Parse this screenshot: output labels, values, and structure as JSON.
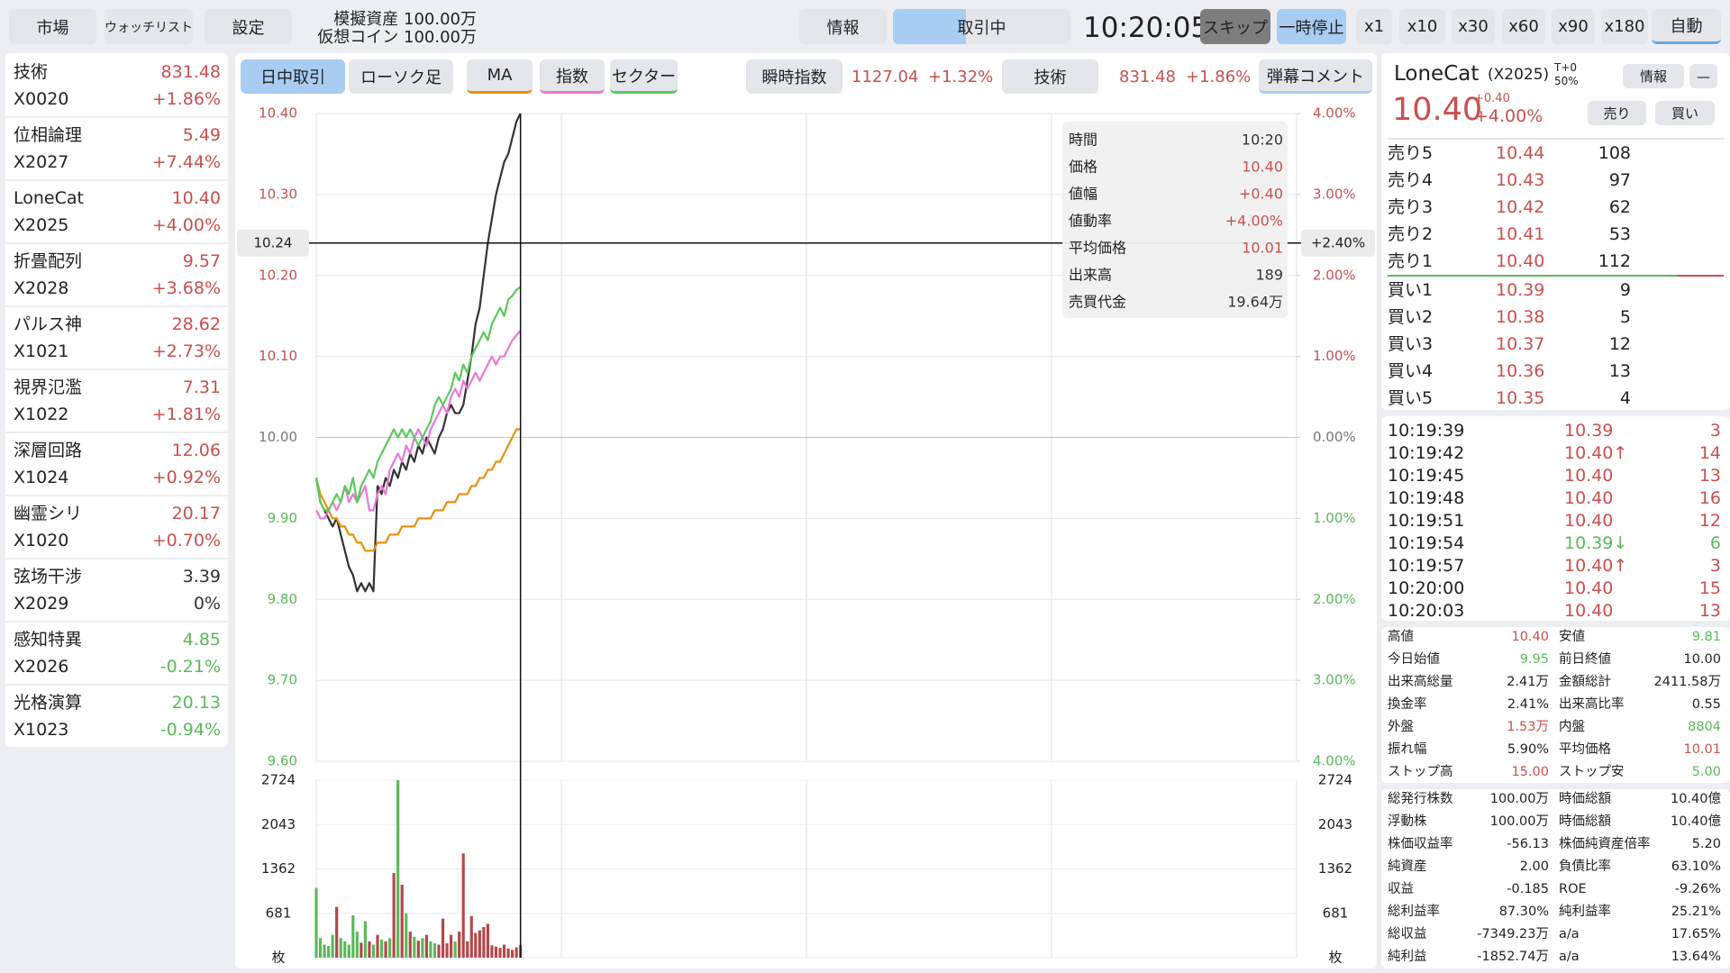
{
  "header": {
    "buttons": [
      "市場",
      "ウォッチリスト",
      "設定"
    ],
    "assets": [
      "模擬資産 100.00万",
      "仮想コイン 100.00万"
    ],
    "info": "情報",
    "status": "取引中",
    "time": "10:20:05",
    "skip": "スキップ",
    "pause": "一時停止",
    "speeds": [
      "x1",
      "x10",
      "x30",
      "x60",
      "x90",
      "x180"
    ],
    "auto": "自動"
  },
  "watchlist": [
    {
      "name": "技術",
      "code": "X0020",
      "price": "831.48",
      "change": "+1.86%",
      "color": "#c8504f"
    },
    {
      "name": "位相論理",
      "code": "X2027",
      "price": "5.49",
      "change": "+7.44%",
      "color": "#c8504f"
    },
    {
      "name": "LoneCat",
      "code": "X2025",
      "price": "10.40",
      "change": "+4.00%",
      "color": "#c8504f"
    },
    {
      "name": "折畳配列",
      "code": "X2028",
      "price": "9.57",
      "change": "+3.68%",
      "color": "#c8504f"
    },
    {
      "name": "パルス神",
      "code": "X1021",
      "price": "28.62",
      "change": "+2.73%",
      "color": "#c8504f"
    },
    {
      "name": "視界氾濫",
      "code": "X1022",
      "price": "7.31",
      "change": "+1.81%",
      "color": "#c8504f"
    },
    {
      "name": "深層回路",
      "code": "X1024",
      "price": "12.06",
      "change": "+0.92%",
      "color": "#c8504f"
    },
    {
      "name": "幽霊シリ",
      "code": "X1020",
      "price": "20.17",
      "change": "+0.70%",
      "color": "#c8504f"
    },
    {
      "name": "弦场干涉",
      "code": "X2029",
      "price": "3.39",
      "change": "0%",
      "color": "#333333"
    },
    {
      "name": "感知特異",
      "code": "X2026",
      "price": "4.85",
      "change": "-0.21%",
      "color": "#5cb85c"
    },
    {
      "name": "光格演算",
      "code": "X1023",
      "price": "20.13",
      "change": "-0.94%",
      "color": "#5cb85c"
    }
  ],
  "tabs": {
    "modes": [
      "日中取引",
      "ローソク足"
    ],
    "index": {
      "label": "瞬時指数",
      "value": "1127.04",
      "change": "+1.32%"
    },
    "sector": {
      "label": "技術",
      "value": "831.48",
      "change": "+1.86%"
    },
    "comments": "弾幕コメント"
  },
  "chart_data": [
    {
      "type": "line",
      "xlim": [
        0,
        240
      ],
      "xticks": [
        0,
        60,
        120,
        180,
        240
      ],
      "x": [
        0,
        1,
        2,
        3,
        4,
        5,
        6,
        7,
        8,
        9,
        10,
        11,
        12,
        13,
        14,
        15,
        16,
        17,
        18,
        19,
        20,
        21,
        22,
        23,
        24,
        25,
        26,
        27,
        28,
        29,
        30,
        31,
        32,
        33,
        34,
        35,
        36,
        37,
        38,
        39,
        40,
        41,
        42,
        43,
        44,
        45,
        46,
        47,
        48,
        49,
        50
      ],
      "ylim": [
        9.6,
        10.4
      ],
      "yticks": [
        {
          "value": 10.4,
          "label": "10.40"
        },
        {
          "value": 10.3,
          "label": "10.30"
        },
        {
          "value": 10.2,
          "label": "10.20"
        },
        {
          "value": 10.1,
          "label": "10.10"
        },
        {
          "value": 10.0,
          "label": "10.00"
        },
        {
          "value": 9.9,
          "label": "9.90"
        },
        {
          "value": 9.8,
          "label": "9.80"
        },
        {
          "value": 9.7,
          "label": "9.70"
        },
        {
          "value": 9.6,
          "label": "9.60"
        }
      ],
      "y2lim": [
        -4,
        4
      ],
      "y2ticks": [
        {
          "value": 4,
          "label": "4.00%"
        },
        {
          "value": 3,
          "label": "3.00%"
        },
        {
          "value": 2,
          "label": "2.00%"
        },
        {
          "value": 1,
          "label": "1.00%"
        },
        {
          "value": 0,
          "label": "0.00%"
        },
        {
          "value": -1,
          "label": "1.00%"
        },
        {
          "value": -2,
          "label": "2.00%"
        },
        {
          "value": -3,
          "label": "3.00%"
        },
        {
          "value": -4,
          "label": "4.00%"
        }
      ],
      "grid": true,
      "series": [
        {
          "color": "#333333",
          "values": [
            9.95,
            9.92,
            9.91,
            9.9,
            9.89,
            9.9,
            9.88,
            9.86,
            9.84,
            9.83,
            9.81,
            9.82,
            9.81,
            9.82,
            9.81,
            9.94,
            9.93,
            9.95,
            9.94,
            9.96,
            9.95,
            9.97,
            9.96,
            9.98,
            9.97,
            9.99,
            9.98,
            10.0,
            9.99,
            9.98,
            10.0,
            10.01,
            10.03,
            10.04,
            10.03,
            10.03,
            10.04,
            10.07,
            10.1,
            10.14,
            10.16,
            10.2,
            10.24,
            10.27,
            10.3,
            10.32,
            10.34,
            10.35,
            10.37,
            10.39,
            10.4
          ]
        },
        {
          "name": "MA",
          "color": "#e8900c",
          "values": [
            9.95,
            9.93,
            9.92,
            9.91,
            9.9,
            9.9,
            9.89,
            9.89,
            9.88,
            9.88,
            9.87,
            9.87,
            9.86,
            9.86,
            9.86,
            9.87,
            9.87,
            9.87,
            9.88,
            9.88,
            9.88,
            9.89,
            9.89,
            9.89,
            9.89,
            9.9,
            9.9,
            9.9,
            9.9,
            9.91,
            9.91,
            9.91,
            9.92,
            9.92,
            9.92,
            9.93,
            9.93,
            9.93,
            9.94,
            9.94,
            9.95,
            9.95,
            9.96,
            9.96,
            9.97,
            9.97,
            9.98,
            9.99,
            10.0,
            10.01,
            10.01
          ]
        },
        {
          "name": "指数",
          "color": "#e67ad8",
          "axis": "y2",
          "values": [
            -0.9,
            -1.0,
            -1.0,
            -0.9,
            -0.8,
            -0.9,
            -0.8,
            -0.6,
            -0.8,
            -0.7,
            -0.8,
            -0.7,
            -0.6,
            -0.9,
            -0.9,
            -0.7,
            -0.6,
            -0.7,
            -0.4,
            -0.3,
            -0.2,
            -0.3,
            -0.1,
            -0.2,
            0.0,
            0.1,
            0.0,
            -0.1,
            0.1,
            0.2,
            0.3,
            0.4,
            0.3,
            0.5,
            0.6,
            0.5,
            0.7,
            0.6,
            0.7,
            0.8,
            0.7,
            0.8,
            0.9,
            1.0,
            0.9,
            1.0,
            1.0,
            1.1,
            1.2,
            1.26,
            1.32
          ]
        },
        {
          "name": "セクター",
          "color": "#5cc85c",
          "axis": "y2",
          "values": [
            -0.5,
            -0.8,
            -0.9,
            -0.9,
            -0.8,
            -0.7,
            -0.8,
            -0.6,
            -0.7,
            -0.5,
            -0.8,
            -0.6,
            -0.5,
            -0.4,
            -0.5,
            -0.3,
            -0.2,
            -0.1,
            0.0,
            0.1,
            0.0,
            0.1,
            0.0,
            0.1,
            0.0,
            -0.1,
            0.0,
            0.1,
            0.2,
            0.4,
            0.5,
            0.4,
            0.5,
            0.6,
            0.8,
            0.7,
            0.9,
            0.8,
            1.0,
            1.1,
            1.2,
            1.3,
            1.2,
            1.4,
            1.5,
            1.6,
            1.5,
            1.7,
            1.75,
            1.82,
            1.86
          ]
        }
      ],
      "crosshair": {
        "x": 50,
        "y": 10.24,
        "y2": {
          "value": 2.4,
          "label": "+2.40%"
        }
      },
      "tooltip": [
        {
          "label": "時間",
          "value": "10:20",
          "color": "#333333"
        },
        {
          "label": "価格",
          "value": "10.40",
          "color": "#c8504f"
        },
        {
          "label": "値幅",
          "value": "+0.40",
          "color": "#c8504f"
        },
        {
          "label": "値動率",
          "value": "+4.00%",
          "color": "#c8504f"
        },
        {
          "label": "平均価格",
          "value": "10.01",
          "color": "#c8504f"
        },
        {
          "label": "出来高",
          "value": "189",
          "color": "#333333"
        },
        {
          "label": "売買代金",
          "value": "19.64万",
          "color": "#333333"
        }
      ]
    },
    {
      "type": "bar",
      "xlim": [
        0,
        240
      ],
      "xticks": [
        0,
        60,
        120,
        180,
        240
      ],
      "x": [
        0,
        1,
        2,
        3,
        4,
        5,
        6,
        7,
        8,
        9,
        10,
        11,
        12,
        13,
        14,
        15,
        16,
        17,
        18,
        19,
        20,
        21,
        22,
        23,
        24,
        25,
        26,
        27,
        28,
        29,
        30,
        31,
        32,
        33,
        34,
        35,
        36,
        37,
        38,
        39,
        40,
        41,
        42,
        43,
        44,
        45,
        46,
        47,
        48,
        49,
        50
      ],
      "values": [
        1070,
        300,
        200,
        180,
        350,
        780,
        300,
        250,
        200,
        650,
        400,
        230,
        560,
        250,
        200,
        350,
        280,
        250,
        300,
        1300,
        2724,
        1120,
        680,
        400,
        320,
        260,
        300,
        350,
        250,
        220,
        200,
        600,
        220,
        350,
        250,
        400,
        1600,
        250,
        640,
        380,
        420,
        470,
        520,
        190,
        170,
        150,
        200,
        140,
        120,
        160,
        189
      ],
      "ylim": [
        0,
        2724
      ],
      "yticks": [
        {
          "value": 0,
          "label": "枚"
        },
        681,
        1362,
        2043,
        2724
      ],
      "colors": {
        "up": "#b5474b",
        "down": "#5cb85c"
      }
    }
  ],
  "stock": {
    "name": "LoneCat",
    "code": "(X2025)",
    "t": "T+0",
    "ratio": "50%",
    "info": "情報",
    "minimize": "—",
    "price": "10.40",
    "change": "+0.40",
    "pct": "+4.00%",
    "sell": "売り",
    "buy": "買い"
  },
  "order_book": [
    {
      "label": "売り5",
      "price": "10.44",
      "volume": "108"
    },
    {
      "label": "売り4",
      "price": "10.43",
      "volume": "97"
    },
    {
      "label": "売り3",
      "price": "10.42",
      "volume": "62"
    },
    {
      "label": "売り2",
      "price": "10.41",
      "volume": "53"
    },
    {
      "label": "売り1",
      "price": "10.40",
      "volume": "112"
    },
    {
      "label": "買い1",
      "price": "10.39",
      "volume": "9"
    },
    {
      "label": "買い2",
      "price": "10.38",
      "volume": "5"
    },
    {
      "label": "買い3",
      "price": "10.37",
      "volume": "12"
    },
    {
      "label": "買い4",
      "price": "10.36",
      "volume": "13"
    },
    {
      "label": "買い5",
      "price": "10.35",
      "volume": "4"
    }
  ],
  "trades": [
    {
      "time": "10:19:39",
      "price": "10.39",
      "volume": "3",
      "color": "#c8504f"
    },
    {
      "time": "10:19:42",
      "price": "10.40↑",
      "volume": "14",
      "color": "#c8504f"
    },
    {
      "time": "10:19:45",
      "price": "10.40",
      "volume": "13",
      "color": "#c8504f"
    },
    {
      "time": "10:19:48",
      "price": "10.40",
      "volume": "16",
      "color": "#c8504f"
    },
    {
      "time": "10:19:51",
      "price": "10.40",
      "volume": "12",
      "color": "#c8504f"
    },
    {
      "time": "10:19:54",
      "price": "10.39↓",
      "volume": "6",
      "color": "#5cb85c"
    },
    {
      "time": "10:19:57",
      "price": "10.40↑",
      "volume": "3",
      "color": "#c8504f"
    },
    {
      "time": "10:20:00",
      "price": "10.40",
      "volume": "15",
      "color": "#c8504f"
    },
    {
      "time": "10:20:03",
      "price": "10.40",
      "volume": "13",
      "color": "#c8504f"
    }
  ],
  "stats": [
    [
      {
        "label": "高値",
        "value": "10.40",
        "color": "#c8504f"
      },
      {
        "label": "安値",
        "value": "9.81",
        "color": "#5cb85c"
      }
    ],
    [
      {
        "label": "今日始値",
        "value": "9.95",
        "color": "#5cb85c"
      },
      {
        "label": "前日終値",
        "value": "10.00",
        "color": "#222222"
      }
    ],
    [
      {
        "label": "出来高総量",
        "value": "2.41万",
        "color": "#222222"
      },
      {
        "label": "金額総計",
        "value": "2411.58万",
        "color": "#222222"
      }
    ],
    [
      {
        "label": "換金率",
        "value": "2.41%",
        "color": "#222222"
      },
      {
        "label": "出来高比率",
        "value": "0.55",
        "color": "#222222"
      }
    ],
    [
      {
        "label": "外盤",
        "value": "1.53万",
        "color": "#c8504f"
      },
      {
        "label": "内盤",
        "value": "8804",
        "color": "#5cb85c"
      }
    ],
    [
      {
        "label": "振れ幅",
        "value": "5.90%",
        "color": "#222222"
      },
      {
        "label": "平均価格",
        "value": "10.01",
        "color": "#c8504f"
      }
    ],
    [
      {
        "label": "ストップ高",
        "value": "15.00",
        "color": "#c8504f"
      },
      {
        "label": "ストップ安",
        "value": "5.00",
        "color": "#5cb85c"
      }
    ]
  ],
  "fundamentals": [
    [
      {
        "label": "総発行株数",
        "value": "100.00万"
      },
      {
        "label": "時価総額",
        "value": "10.40億"
      }
    ],
    [
      {
        "label": "浮動株",
        "value": "100.00万"
      },
      {
        "label": "時価総額",
        "value": "10.40億"
      }
    ],
    [
      {
        "label": "株価収益率",
        "value": "-56.13"
      },
      {
        "label": "株価純資産倍率",
        "value": "5.20"
      }
    ],
    [
      {
        "label": "純資産",
        "value": "2.00"
      },
      {
        "label": "負債比率",
        "value": "63.10%"
      }
    ],
    [
      {
        "label": "収益",
        "value": "-0.185"
      },
      {
        "label": "ROE",
        "value": "-9.26%"
      }
    ],
    [
      {
        "label": "総利益率",
        "value": "87.30%"
      },
      {
        "label": "純利益率",
        "value": "25.21%"
      }
    ],
    [
      {
        "label": "総収益",
        "value": "-7349.23万"
      },
      {
        "label": "a/a",
        "value": "17.65%"
      }
    ],
    [
      {
        "label": "純利益",
        "value": "-1852.74万"
      },
      {
        "label": "a/a",
        "value": "13.64%"
      }
    ]
  ]
}
